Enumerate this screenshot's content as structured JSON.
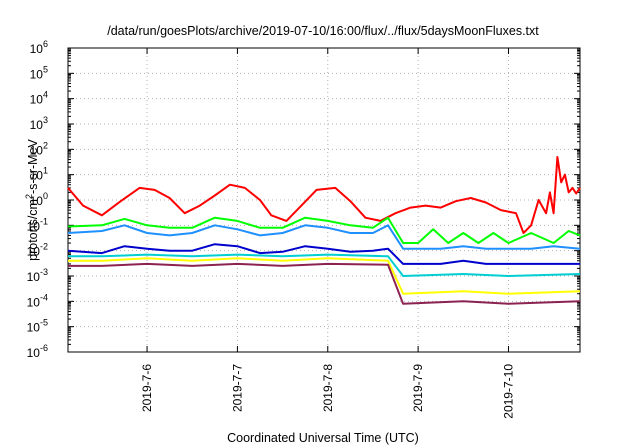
{
  "chart_data": {
    "type": "line",
    "title": "/data/run/goesPlots/archive/2019-07-10/16:00/flux/../flux/5daysMoonFluxes.txt",
    "xlabel": "Coordinated Universal Time (UTC)",
    "ylabel": {
      "base": "protons/cm",
      "sup": "2",
      "rest": "-s-sr-MeV"
    },
    "yscale": "log",
    "ylim": [
      1e-06,
      1000000.0
    ],
    "xlim": [
      "2019-07-05 03:00",
      "2019-07-10 19:00"
    ],
    "x_ticks": [
      "2019-7-6",
      "2019-7-7",
      "2019-7-8",
      "2019-7-9",
      "2019-7-10"
    ],
    "y_ticks": [
      {
        "base": "10",
        "exp": "-6"
      },
      {
        "base": "10",
        "exp": "-5"
      },
      {
        "base": "10",
        "exp": "-4"
      },
      {
        "base": "10",
        "exp": "-3"
      },
      {
        "base": "10",
        "exp": "-2"
      },
      {
        "base": "10",
        "exp": "-1"
      },
      {
        "base": "10",
        "exp": "0"
      },
      {
        "base": "10",
        "exp": "1"
      },
      {
        "base": "10",
        "exp": "2"
      },
      {
        "base": "10",
        "exp": "3"
      },
      {
        "base": "10",
        "exp": "4"
      },
      {
        "base": "10",
        "exp": "5"
      },
      {
        "base": "10",
        "exp": "6"
      }
    ],
    "grid": true,
    "legend": "none",
    "series": [
      {
        "color": "#ff0000",
        "points": [
          [
            "2019-07-05 03:00",
            3.0
          ],
          [
            "2019-07-05 07:00",
            0.6
          ],
          [
            "2019-07-05 12:00",
            0.25
          ],
          [
            "2019-07-05 17:00",
            0.9
          ],
          [
            "2019-07-05 22:00",
            3.0
          ],
          [
            "2019-07-06 02:00",
            2.5
          ],
          [
            "2019-07-06 06:00",
            1.2
          ],
          [
            "2019-07-06 10:00",
            0.3
          ],
          [
            "2019-07-06 14:00",
            0.6
          ],
          [
            "2019-07-06 18:00",
            1.5
          ],
          [
            "2019-07-06 22:00",
            4.0
          ],
          [
            "2019-07-07 02:00",
            3.0
          ],
          [
            "2019-07-07 06:00",
            1.0
          ],
          [
            "2019-07-07 09:00",
            0.25
          ],
          [
            "2019-07-07 13:00",
            0.15
          ],
          [
            "2019-07-07 17:00",
            0.6
          ],
          [
            "2019-07-07 21:00",
            2.5
          ],
          [
            "2019-07-08 02:00",
            3.0
          ],
          [
            "2019-07-08 06:00",
            0.9
          ],
          [
            "2019-07-08 10:00",
            0.2
          ],
          [
            "2019-07-08 14:00",
            0.15
          ],
          [
            "2019-07-08 18:00",
            0.3
          ],
          [
            "2019-07-08 22:00",
            0.5
          ],
          [
            "2019-07-09 02:00",
            0.6
          ],
          [
            "2019-07-09 06:00",
            0.5
          ],
          [
            "2019-07-09 10:00",
            0.9
          ],
          [
            "2019-07-09 14:00",
            1.2
          ],
          [
            "2019-07-09 18:00",
            0.8
          ],
          [
            "2019-07-09 22:00",
            0.4
          ],
          [
            "2019-07-10 02:00",
            0.3
          ],
          [
            "2019-07-10 04:00",
            0.05
          ],
          [
            "2019-07-10 06:00",
            0.1
          ],
          [
            "2019-07-10 08:00",
            1.0
          ],
          [
            "2019-07-10 10:00",
            0.3
          ],
          [
            "2019-07-10 11:00",
            2.0
          ],
          [
            "2019-07-10 12:00",
            0.3
          ],
          [
            "2019-07-10 13:00",
            50
          ],
          [
            "2019-07-10 14:00",
            5
          ],
          [
            "2019-07-10 15:00",
            10
          ],
          [
            "2019-07-10 16:00",
            2
          ],
          [
            "2019-07-10 17:00",
            3
          ],
          [
            "2019-07-10 18:00",
            1.8
          ],
          [
            "2019-07-10 19:00",
            3.0
          ]
        ]
      },
      {
        "color": "#00ff00",
        "points": [
          [
            "2019-07-05 03:00",
            0.09
          ],
          [
            "2019-07-05 12:00",
            0.1
          ],
          [
            "2019-07-05 18:00",
            0.18
          ],
          [
            "2019-07-06 00:00",
            0.1
          ],
          [
            "2019-07-06 06:00",
            0.08
          ],
          [
            "2019-07-06 12:00",
            0.08
          ],
          [
            "2019-07-06 18:00",
            0.2
          ],
          [
            "2019-07-07 00:00",
            0.15
          ],
          [
            "2019-07-07 06:00",
            0.08
          ],
          [
            "2019-07-07 12:00",
            0.08
          ],
          [
            "2019-07-07 18:00",
            0.2
          ],
          [
            "2019-07-08 00:00",
            0.15
          ],
          [
            "2019-07-08 06:00",
            0.1
          ],
          [
            "2019-07-08 12:00",
            0.08
          ],
          [
            "2019-07-08 16:00",
            0.2
          ],
          [
            "2019-07-08 20:00",
            0.02
          ],
          [
            "2019-07-09 00:00",
            0.02
          ],
          [
            "2019-07-09 04:00",
            0.07
          ],
          [
            "2019-07-09 08:00",
            0.02
          ],
          [
            "2019-07-09 12:00",
            0.05
          ],
          [
            "2019-07-09 16:00",
            0.02
          ],
          [
            "2019-07-09 20:00",
            0.05
          ],
          [
            "2019-07-10 00:00",
            0.02
          ],
          [
            "2019-07-10 06:00",
            0.05
          ],
          [
            "2019-07-10 12:00",
            0.02
          ],
          [
            "2019-07-10 16:00",
            0.06
          ],
          [
            "2019-07-10 19:00",
            0.04
          ]
        ]
      },
      {
        "color": "#1e90ff",
        "points": [
          [
            "2019-07-05 03:00",
            0.05
          ],
          [
            "2019-07-05 12:00",
            0.06
          ],
          [
            "2019-07-05 18:00",
            0.1
          ],
          [
            "2019-07-06 00:00",
            0.05
          ],
          [
            "2019-07-06 06:00",
            0.04
          ],
          [
            "2019-07-06 12:00",
            0.05
          ],
          [
            "2019-07-06 18:00",
            0.1
          ],
          [
            "2019-07-07 00:00",
            0.07
          ],
          [
            "2019-07-07 06:00",
            0.04
          ],
          [
            "2019-07-07 12:00",
            0.05
          ],
          [
            "2019-07-07 18:00",
            0.1
          ],
          [
            "2019-07-08 00:00",
            0.08
          ],
          [
            "2019-07-08 06:00",
            0.05
          ],
          [
            "2019-07-08 12:00",
            0.05
          ],
          [
            "2019-07-08 16:00",
            0.1
          ],
          [
            "2019-07-08 20:00",
            0.012
          ],
          [
            "2019-07-09 06:00",
            0.012
          ],
          [
            "2019-07-09 12:00",
            0.015
          ],
          [
            "2019-07-09 18:00",
            0.012
          ],
          [
            "2019-07-10 06:00",
            0.012
          ],
          [
            "2019-07-10 12:00",
            0.015
          ],
          [
            "2019-07-10 19:00",
            0.012
          ]
        ]
      },
      {
        "color": "#0000cd",
        "points": [
          [
            "2019-07-05 03:00",
            0.01
          ],
          [
            "2019-07-05 12:00",
            0.008
          ],
          [
            "2019-07-05 18:00",
            0.015
          ],
          [
            "2019-07-06 00:00",
            0.012
          ],
          [
            "2019-07-06 06:00",
            0.01
          ],
          [
            "2019-07-06 12:00",
            0.01
          ],
          [
            "2019-07-06 18:00",
            0.018
          ],
          [
            "2019-07-07 00:00",
            0.015
          ],
          [
            "2019-07-07 06:00",
            0.008
          ],
          [
            "2019-07-07 12:00",
            0.009
          ],
          [
            "2019-07-07 18:00",
            0.015
          ],
          [
            "2019-07-08 00:00",
            0.012
          ],
          [
            "2019-07-08 06:00",
            0.009
          ],
          [
            "2019-07-08 12:00",
            0.01
          ],
          [
            "2019-07-08 16:00",
            0.012
          ],
          [
            "2019-07-08 20:00",
            0.003
          ],
          [
            "2019-07-09 06:00",
            0.003
          ],
          [
            "2019-07-09 12:00",
            0.004
          ],
          [
            "2019-07-09 18:00",
            0.003
          ],
          [
            "2019-07-10 06:00",
            0.003
          ],
          [
            "2019-07-10 12:00",
            0.003
          ],
          [
            "2019-07-10 19:00",
            0.003
          ]
        ]
      },
      {
        "color": "#00ced1",
        "points": [
          [
            "2019-07-05 03:00",
            0.006
          ],
          [
            "2019-07-05 12:00",
            0.006
          ],
          [
            "2019-07-06 00:00",
            0.007
          ],
          [
            "2019-07-06 12:00",
            0.006
          ],
          [
            "2019-07-07 00:00",
            0.007
          ],
          [
            "2019-07-07 12:00",
            0.006
          ],
          [
            "2019-07-08 00:00",
            0.007
          ],
          [
            "2019-07-08 16:00",
            0.006
          ],
          [
            "2019-07-08 20:00",
            0.001
          ],
          [
            "2019-07-09 12:00",
            0.0012
          ],
          [
            "2019-07-10 00:00",
            0.001
          ],
          [
            "2019-07-10 19:00",
            0.0012
          ]
        ]
      },
      {
        "color": "#ffff00",
        "points": [
          [
            "2019-07-05 03:00",
            0.004
          ],
          [
            "2019-07-05 12:00",
            0.004
          ],
          [
            "2019-07-06 00:00",
            0.005
          ],
          [
            "2019-07-06 12:00",
            0.004
          ],
          [
            "2019-07-07 00:00",
            0.005
          ],
          [
            "2019-07-07 12:00",
            0.004
          ],
          [
            "2019-07-08 00:00",
            0.005
          ],
          [
            "2019-07-08 16:00",
            0.004
          ],
          [
            "2019-07-08 20:00",
            0.0002
          ],
          [
            "2019-07-09 12:00",
            0.00025
          ],
          [
            "2019-07-10 00:00",
            0.0002
          ],
          [
            "2019-07-10 19:00",
            0.00025
          ]
        ]
      },
      {
        "color": "#8b2252",
        "points": [
          [
            "2019-07-05 03:00",
            0.0025
          ],
          [
            "2019-07-05 12:00",
            0.0025
          ],
          [
            "2019-07-06 00:00",
            0.003
          ],
          [
            "2019-07-06 12:00",
            0.0025
          ],
          [
            "2019-07-07 00:00",
            0.003
          ],
          [
            "2019-07-07 12:00",
            0.0025
          ],
          [
            "2019-07-08 00:00",
            0.003
          ],
          [
            "2019-07-08 16:00",
            0.0028
          ],
          [
            "2019-07-08 20:00",
            8e-05
          ],
          [
            "2019-07-09 12:00",
            0.0001
          ],
          [
            "2019-07-10 00:00",
            8e-05
          ],
          [
            "2019-07-10 19:00",
            0.0001
          ]
        ]
      }
    ]
  }
}
